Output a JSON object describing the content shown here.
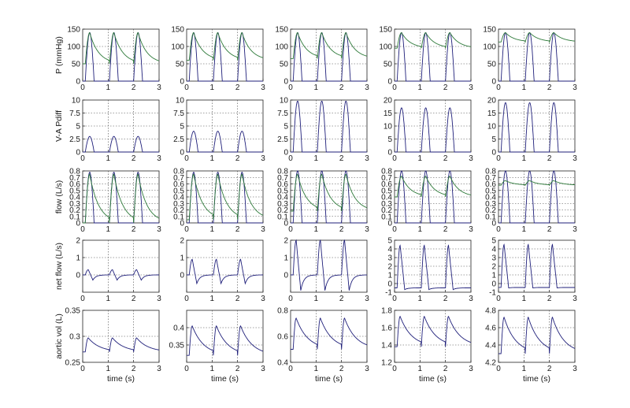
{
  "figure": {
    "x_label": "time (s)",
    "row_labels": [
      "P (mmHg)",
      "V-A Pdiff",
      "flow (L/s)",
      "net flow (L/s)",
      "aortic vol (L)"
    ]
  },
  "chart_data": {
    "type": "line",
    "layout": "5 rows x 5 columns of small multiples",
    "x_ticks": [
      0,
      1,
      2,
      3
    ],
    "xlim": [
      0,
      3
    ],
    "grid": "dotted",
    "beats_per_panel": 3,
    "beat_period": 0.95,
    "colors": {
      "blue": "#1f1f7a",
      "green": "#2e7a3a"
    },
    "rows": [
      {
        "ylabel": "P (mmHg)",
        "ylims": [
          [
            0,
            150
          ],
          [
            0,
            150
          ],
          [
            0,
            150
          ],
          [
            0,
            150
          ],
          [
            0,
            150
          ]
        ],
        "yticks": [
          [
            0,
            50,
            100,
            150
          ],
          [
            0,
            50,
            100,
            150
          ],
          [
            0,
            50,
            100,
            150
          ],
          [
            0,
            50,
            100,
            150
          ],
          [
            0,
            50,
            100,
            150
          ]
        ],
        "series": [
          {
            "color": "blue",
            "shape": "pulse",
            "peak": [
              140,
              140,
              140,
              140,
              140
            ],
            "base": [
              0,
              0,
              0,
              0,
              0
            ]
          },
          {
            "color": "green",
            "shape": "decay",
            "peak": [
              140,
              140,
              140,
              140,
              140
            ],
            "floor": [
              50,
              60,
              65,
              95,
              113
            ]
          }
        ]
      },
      {
        "ylabel": "V-A Pdiff",
        "ylims": [
          [
            0,
            10
          ],
          [
            0,
            10
          ],
          [
            0,
            10
          ],
          [
            0,
            20
          ],
          [
            0,
            20
          ]
        ],
        "yticks": [
          [
            0,
            2.5,
            5,
            7.5,
            10
          ],
          [
            0,
            2.5,
            5,
            7.5,
            10
          ],
          [
            0,
            2.5,
            5,
            7.5,
            10
          ],
          [
            0,
            5,
            10,
            15,
            20
          ],
          [
            0,
            5,
            10,
            15,
            20
          ]
        ],
        "series": [
          {
            "color": "blue",
            "shape": "pulse",
            "peak": [
              3,
              4,
              9.8,
              17,
              19
            ],
            "base": [
              0,
              0,
              0,
              0,
              0
            ]
          }
        ]
      },
      {
        "ylabel": "flow (L/s)",
        "ylims": [
          [
            0,
            0.8
          ],
          [
            0,
            0.8
          ],
          [
            0,
            0.8
          ],
          [
            0,
            0.8
          ],
          [
            0,
            0.8
          ]
        ],
        "yticks": [
          [
            0,
            0.1,
            0.2,
            0.3,
            0.4,
            0.5,
            0.6,
            0.7,
            0.8
          ],
          [
            0,
            0.1,
            0.2,
            0.3,
            0.4,
            0.5,
            0.6,
            0.7,
            0.8
          ],
          [
            0,
            0.1,
            0.2,
            0.3,
            0.4,
            0.5,
            0.6,
            0.7,
            0.8
          ],
          [
            0,
            0.1,
            0.2,
            0.3,
            0.4,
            0.5,
            0.6,
            0.7,
            0.8
          ],
          [
            0,
            0.1,
            0.2,
            0.3,
            0.4,
            0.5,
            0.6,
            0.7,
            0.8
          ]
        ],
        "series": [
          {
            "color": "blue",
            "shape": "pulse",
            "peak": [
              0.78,
              0.78,
              0.8,
              0.8,
              0.8
            ],
            "base": [
              0,
              0,
              0,
              0,
              0
            ]
          },
          {
            "color": "green",
            "shape": "decay",
            "peak": [
              0.75,
              0.75,
              0.75,
              0.72,
              0.65
            ],
            "floor": [
              0,
              0.05,
              0.18,
              0.4,
              0.58
            ]
          }
        ]
      },
      {
        "ylabel": "net flow (L/s)",
        "ylims": [
          [
            -1,
            2
          ],
          [
            -1,
            2
          ],
          [
            -1,
            2
          ],
          [
            -1,
            5
          ],
          [
            -1,
            5
          ]
        ],
        "yticks": [
          [
            0,
            1,
            2
          ],
          [
            0,
            1,
            2
          ],
          [
            0,
            1,
            2
          ],
          [
            -1,
            0,
            1,
            2,
            3,
            4,
            5
          ],
          [
            -1,
            0,
            1,
            2,
            3,
            4,
            5
          ]
        ],
        "series": [
          {
            "color": "blue",
            "shape": "netflow",
            "peak": [
              0.3,
              0.9,
              2,
              4.4,
              4.5
            ],
            "dip": [
              -0.3,
              -0.5,
              -0.9,
              -0.7,
              -0.5
            ],
            "base": [
              0,
              0,
              0,
              -0.5,
              -0.45
            ]
          }
        ]
      },
      {
        "ylabel": "aortic vol (L)",
        "ylims": [
          [
            0.25,
            0.35
          ],
          [
            0.3,
            0.45
          ],
          [
            0.4,
            0.8
          ],
          [
            1.2,
            1.8
          ],
          [
            4.2,
            4.8
          ]
        ],
        "yticks": [
          [
            0.25,
            0.3,
            0.35
          ],
          [
            0.35,
            0.4
          ],
          [
            0.4,
            0.6,
            0.8
          ],
          [
            1.2,
            1.4,
            1.6,
            1.8
          ],
          [
            4.2,
            4.4,
            4.6,
            4.8
          ]
        ],
        "series": [
          {
            "color": "blue",
            "shape": "volume",
            "peak": [
              0.297,
              0.405,
              0.74,
              1.73,
              4.72
            ],
            "floor": [
              0.27,
              0.32,
              0.5,
              1.38,
              4.3
            ]
          }
        ]
      }
    ]
  }
}
